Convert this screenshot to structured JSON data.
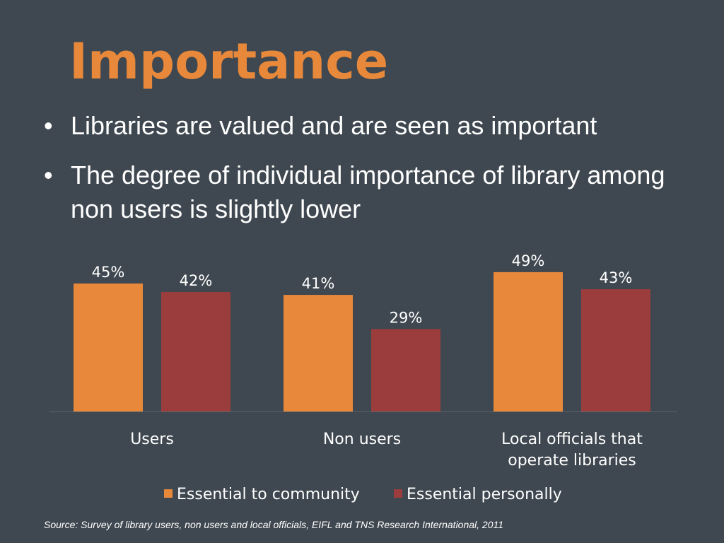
{
  "slide": {
    "title": "Importance",
    "bullets": [
      "Libraries are valued and are seen as important",
      "The degree of individual importance of library among non users is slightly lower"
    ],
    "source": "Source: Survey of library users, non users and local officials, EIFL and TNS Research International, 2011"
  },
  "chart_data": {
    "type": "bar",
    "categories": [
      [
        "Users"
      ],
      [
        "Non users"
      ],
      [
        "Local officials that",
        "operate libraries"
      ]
    ],
    "series": [
      {
        "name": "Essential to community",
        "values": [
          45,
          41,
          49
        ],
        "labels": [
          "45%",
          "41%",
          "49%"
        ],
        "color": "#e8883a"
      },
      {
        "name": "Essential personally",
        "values": [
          42,
          29,
          43
        ],
        "labels": [
          "42%",
          "29%",
          "43%"
        ],
        "color": "#9b3d3d"
      }
    ],
    "ylim": [
      0,
      50
    ],
    "grid": false,
    "legend": "bottom"
  },
  "colors": {
    "background": "#3f4850",
    "title": "#e8883a",
    "text": "#ffffff",
    "axis": "#5a646c"
  }
}
